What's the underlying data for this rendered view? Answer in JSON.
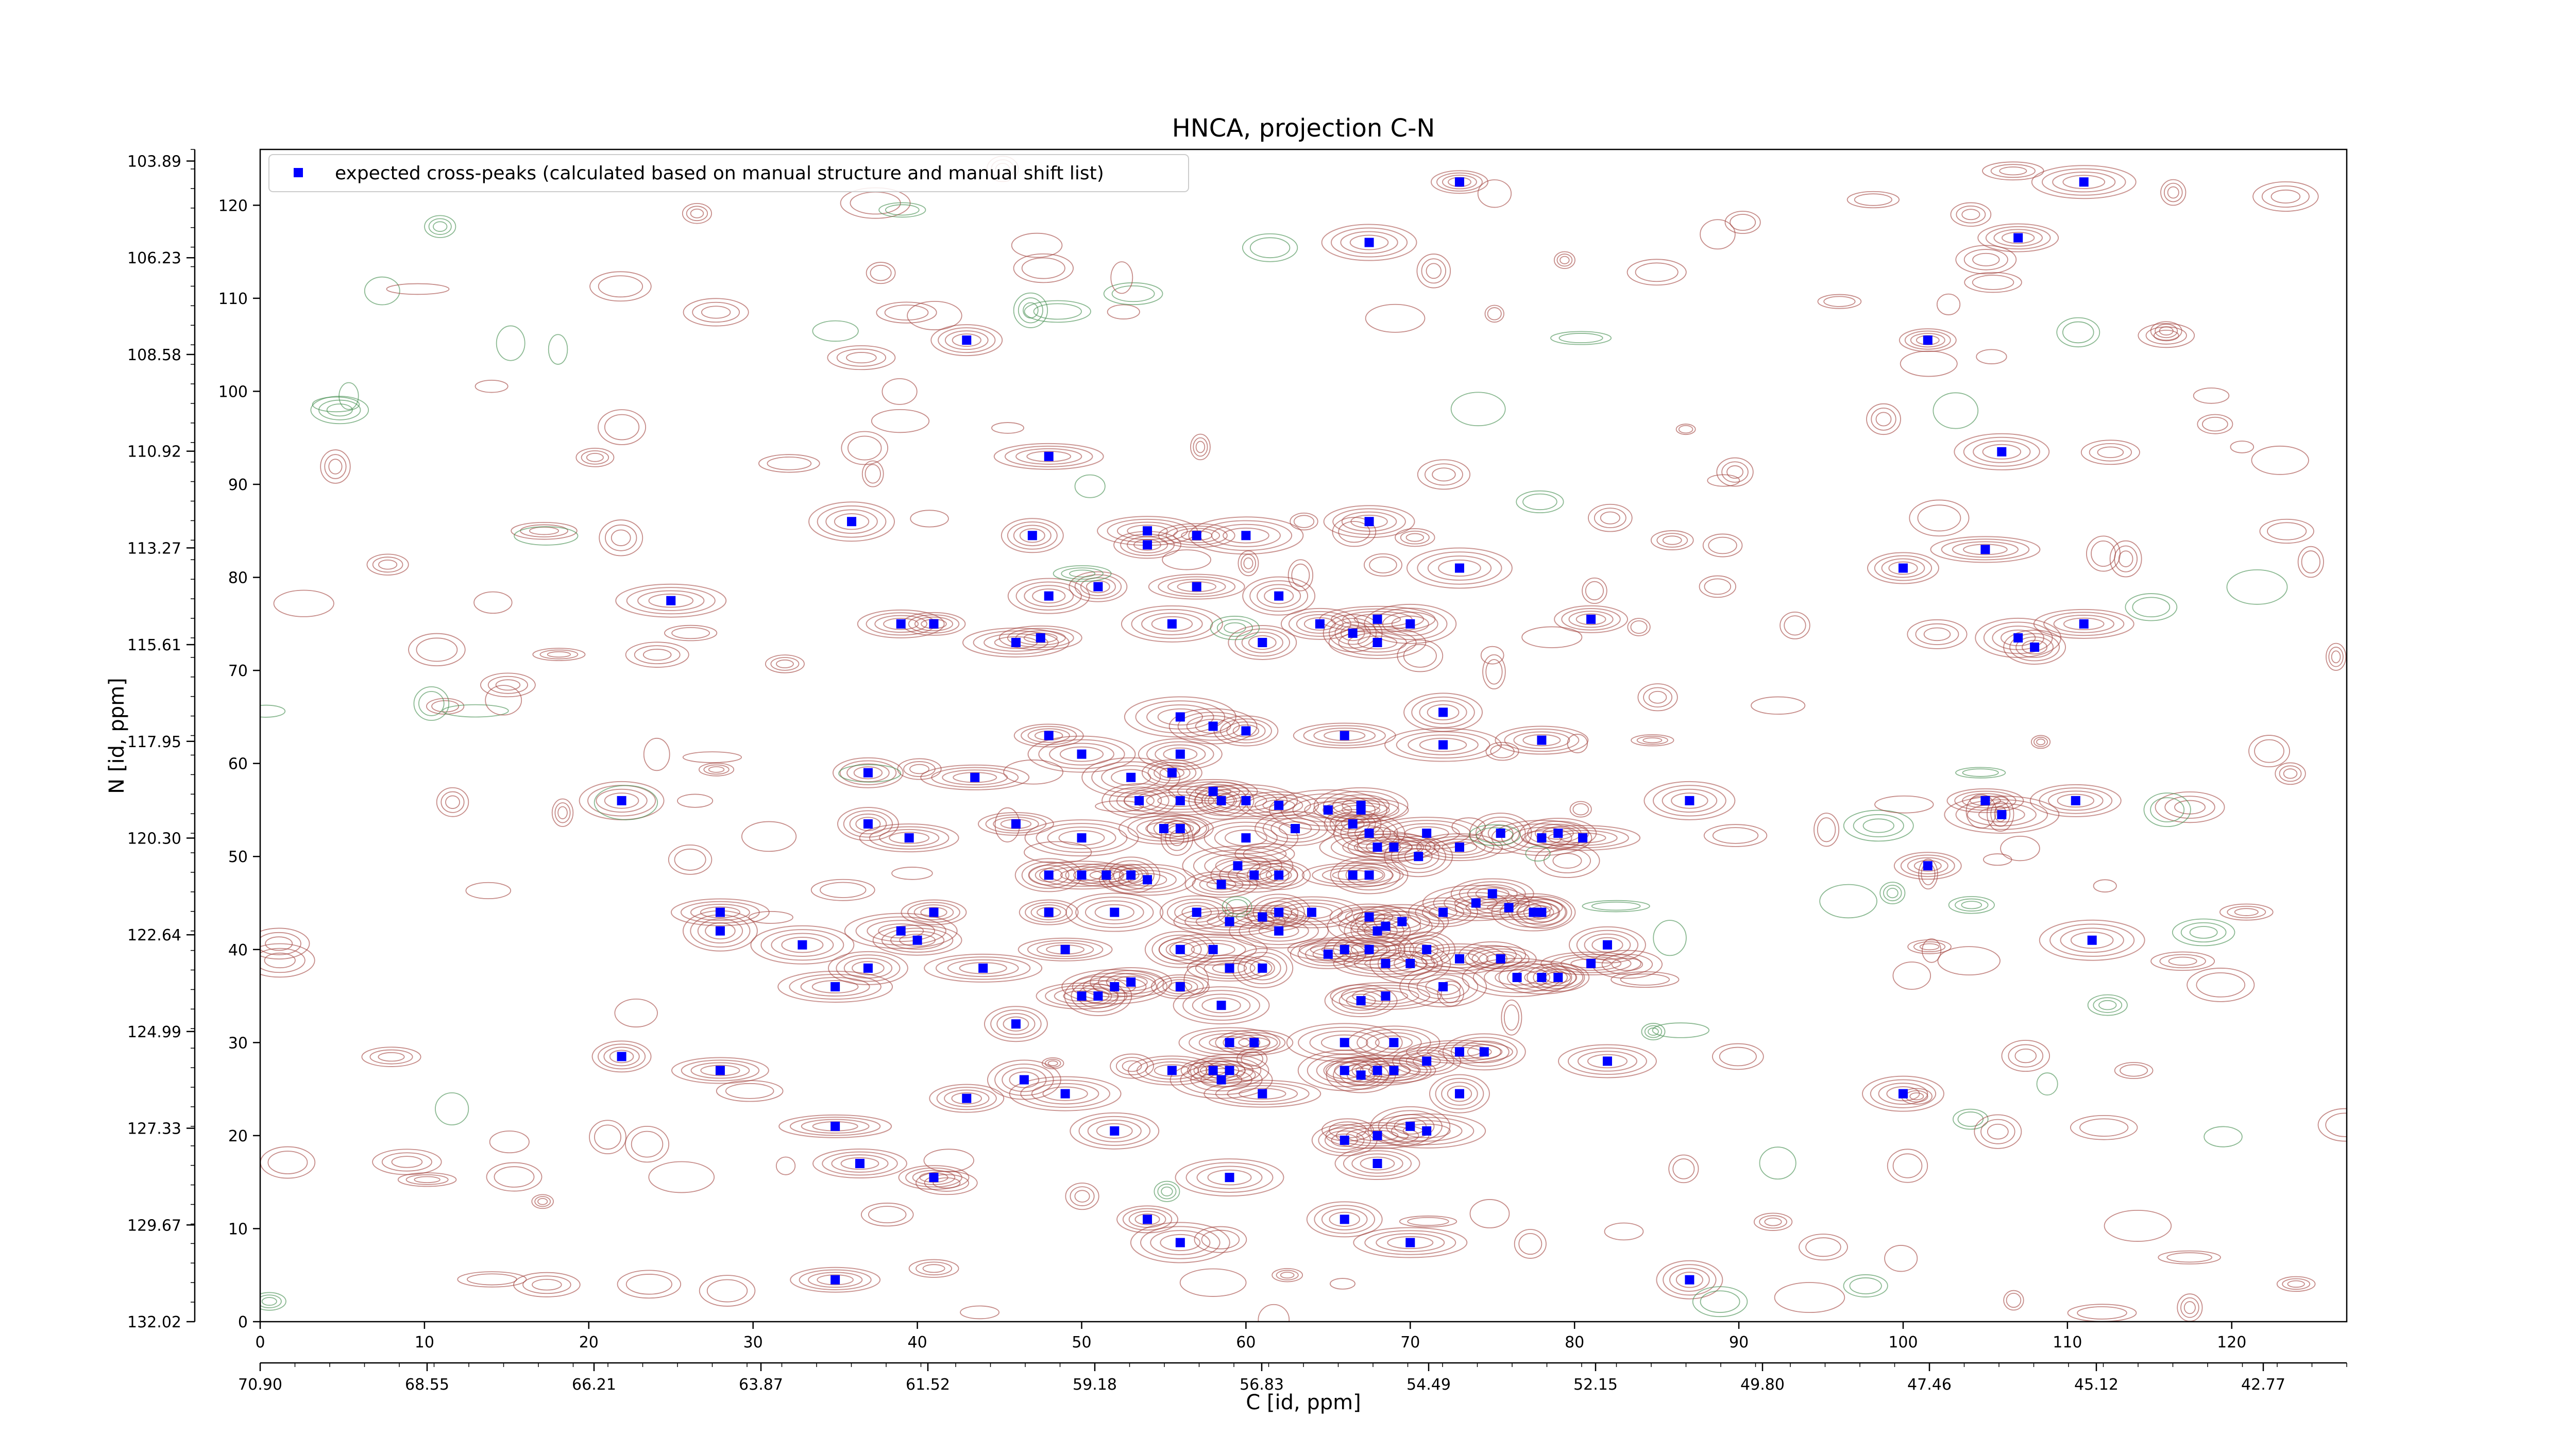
{
  "chart_data": {
    "type": "scatter",
    "title": "HNCA, projection C-N",
    "xlabel": "C [id, ppm]",
    "ylabel": "N [id, ppm]",
    "xlim": [
      0,
      127
    ],
    "ylim": [
      0,
      126
    ],
    "x_ticks": [
      "0",
      "10",
      "20",
      "30",
      "40",
      "50",
      "60",
      "70",
      "80",
      "90",
      "100",
      "110",
      "120"
    ],
    "y_ticks": [
      "0",
      "10",
      "20",
      "30",
      "40",
      "50",
      "60",
      "70",
      "80",
      "90",
      "100",
      "110",
      "120"
    ],
    "secondary_x_ticks": [
      "70.90",
      "68.55",
      "66.21",
      "63.87",
      "61.52",
      "59.18",
      "56.83",
      "54.49",
      "52.15",
      "49.80",
      "47.46",
      "45.12",
      "42.77"
    ],
    "secondary_y_ticks": [
      "132.02",
      "129.67",
      "127.33",
      "124.99",
      "122.64",
      "120.30",
      "117.95",
      "115.61",
      "113.27",
      "110.92",
      "108.58",
      "106.23",
      "103.89"
    ],
    "legend_position": "top-left",
    "colors": {
      "marker": "#0000ff",
      "positive_contour": "#a0403a",
      "negative_contour": "#3d8a4a"
    },
    "series": [
      {
        "name": "expected cross-peaks (calculated based on manual structure and manual shift list)",
        "points": [
          [
            73,
            122.5
          ],
          [
            67.5,
            116
          ],
          [
            43,
            105.5
          ],
          [
            48,
            93
          ],
          [
            36,
            86
          ],
          [
            47,
            84.5
          ],
          [
            54,
            85
          ],
          [
            57,
            84.5
          ],
          [
            60,
            84.5
          ],
          [
            67.5,
            86
          ],
          [
            54,
            83.5
          ],
          [
            73,
            81
          ],
          [
            48,
            78
          ],
          [
            51,
            79
          ],
          [
            57,
            79
          ],
          [
            62,
            78
          ],
          [
            25,
            77.5
          ],
          [
            39,
            75
          ],
          [
            41,
            75
          ],
          [
            55.5,
            75
          ],
          [
            64.5,
            75
          ],
          [
            68,
            75.5
          ],
          [
            70,
            75
          ],
          [
            61,
            73
          ],
          [
            46,
            73
          ],
          [
            47.5,
            73.5
          ],
          [
            66.5,
            74
          ],
          [
            68,
            73
          ],
          [
            81,
            75.5
          ],
          [
            56,
            65
          ],
          [
            58,
            64
          ],
          [
            60,
            63.5
          ],
          [
            66,
            63
          ],
          [
            72,
            65.5
          ],
          [
            72,
            62
          ],
          [
            78,
            62.5
          ],
          [
            48,
            63
          ],
          [
            50,
            61
          ],
          [
            56,
            61
          ],
          [
            55.5,
            59
          ],
          [
            53,
            58.5
          ],
          [
            53.5,
            56
          ],
          [
            56,
            56
          ],
          [
            58,
            57
          ],
          [
            58.5,
            56
          ],
          [
            60,
            56
          ],
          [
            62,
            55.5
          ],
          [
            65,
            55
          ],
          [
            67,
            55.5
          ],
          [
            37,
            59
          ],
          [
            43.5,
            58.5
          ],
          [
            22,
            56
          ],
          [
            37,
            53.5
          ],
          [
            39.5,
            52
          ],
          [
            46,
            53.5
          ],
          [
            50,
            52
          ],
          [
            55,
            53
          ],
          [
            56,
            53
          ],
          [
            60,
            52
          ],
          [
            63,
            53
          ],
          [
            66.5,
            53.5
          ],
          [
            67,
            55
          ],
          [
            67.5,
            52.5
          ],
          [
            71,
            52.5
          ],
          [
            73,
            51
          ],
          [
            75.5,
            52.5
          ],
          [
            78,
            52
          ],
          [
            79,
            52.5
          ],
          [
            80.5,
            52
          ],
          [
            87,
            56
          ],
          [
            48,
            48
          ],
          [
            50,
            48
          ],
          [
            51.5,
            48
          ],
          [
            53,
            48
          ],
          [
            54,
            47.5
          ],
          [
            58.5,
            47
          ],
          [
            59.5,
            49
          ],
          [
            60.5,
            48
          ],
          [
            62,
            48
          ],
          [
            66.5,
            48
          ],
          [
            67.5,
            48
          ],
          [
            68,
            51
          ],
          [
            69,
            51
          ],
          [
            70.5,
            50
          ],
          [
            74,
            45
          ],
          [
            75,
            46
          ],
          [
            48,
            44
          ],
          [
            52,
            44
          ],
          [
            57,
            44
          ],
          [
            59,
            43
          ],
          [
            61,
            43.5
          ],
          [
            62,
            44
          ],
          [
            64,
            44
          ],
          [
            67.5,
            43.5
          ],
          [
            68.5,
            42.5
          ],
          [
            69.5,
            43
          ],
          [
            72,
            44
          ],
          [
            76,
            44.5
          ],
          [
            77.5,
            44
          ],
          [
            78,
            44
          ],
          [
            28,
            44
          ],
          [
            28,
            42
          ],
          [
            39,
            42
          ],
          [
            40,
            41
          ],
          [
            41,
            44
          ],
          [
            33,
            40.5
          ],
          [
            37,
            38
          ],
          [
            44,
            38
          ],
          [
            49,
            40
          ],
          [
            56,
            40
          ],
          [
            58,
            40
          ],
          [
            59,
            38
          ],
          [
            61,
            38
          ],
          [
            62,
            42
          ],
          [
            65,
            39.5
          ],
          [
            66,
            40
          ],
          [
            67.5,
            40
          ],
          [
            68,
            42
          ],
          [
            68.5,
            38.5
          ],
          [
            70,
            38.5
          ],
          [
            71,
            40
          ],
          [
            73,
            39
          ],
          [
            75.5,
            39
          ],
          [
            76.5,
            37
          ],
          [
            78,
            37
          ],
          [
            79,
            37
          ],
          [
            81,
            38.5
          ],
          [
            82,
            40.5
          ],
          [
            35,
            36
          ],
          [
            50,
            35
          ],
          [
            51,
            35
          ],
          [
            52,
            36
          ],
          [
            53,
            36.5
          ],
          [
            56,
            36
          ],
          [
            58.5,
            34
          ],
          [
            67,
            34.5
          ],
          [
            68.5,
            35
          ],
          [
            72,
            36
          ],
          [
            46,
            32
          ],
          [
            59,
            30
          ],
          [
            60.5,
            30
          ],
          [
            66,
            30
          ],
          [
            69,
            30
          ],
          [
            71,
            28
          ],
          [
            73,
            29
          ],
          [
            74.5,
            29
          ],
          [
            22,
            28.5
          ],
          [
            28,
            27
          ],
          [
            46.5,
            26
          ],
          [
            49,
            24.5
          ],
          [
            55.5,
            27
          ],
          [
            58,
            27
          ],
          [
            58.5,
            26
          ],
          [
            59,
            27
          ],
          [
            61,
            24.5
          ],
          [
            66,
            27
          ],
          [
            67,
            26.5
          ],
          [
            68,
            27
          ],
          [
            69,
            27
          ],
          [
            73,
            24.5
          ],
          [
            82,
            28
          ],
          [
            43,
            24
          ],
          [
            35,
            21
          ],
          [
            52,
            20.5
          ],
          [
            66,
            19.5
          ],
          [
            68,
            20
          ],
          [
            70,
            21
          ],
          [
            71,
            20.5
          ],
          [
            36.5,
            17
          ],
          [
            41,
            15.5
          ],
          [
            59,
            15.5
          ],
          [
            68,
            17
          ],
          [
            54,
            11
          ],
          [
            56,
            8.5
          ],
          [
            66,
            11
          ],
          [
            70,
            8.5
          ],
          [
            35,
            4.5
          ],
          [
            87,
            4.5
          ],
          [
            111,
            122.5
          ],
          [
            107,
            116.5
          ],
          [
            101.5,
            105.5
          ],
          [
            106,
            93.5
          ],
          [
            100,
            81
          ],
          [
            105,
            83
          ],
          [
            107,
            73.5
          ],
          [
            108,
            72.5
          ],
          [
            111,
            75
          ],
          [
            105,
            56
          ],
          [
            106,
            54.5
          ],
          [
            110.5,
            56
          ],
          [
            101.5,
            49
          ],
          [
            111.5,
            41
          ],
          [
            100,
            24.5
          ]
        ]
      }
    ]
  }
}
